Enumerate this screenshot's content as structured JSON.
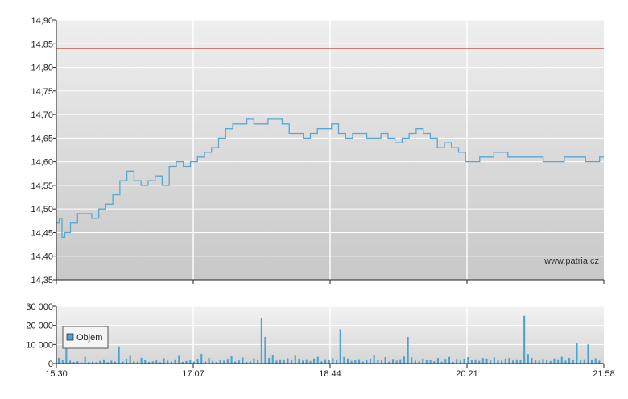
{
  "colors": {
    "price_line": "#5aa7cf",
    "reference_line": "#c0392b",
    "volume_bar": "#4aa3d0",
    "grid": "#ffffff",
    "axis": "#222222",
    "bg_top": "#eeeeee",
    "bg_bottom": "#c8c8c8"
  },
  "watermark": "www.patria.cz",
  "chart_data": [
    {
      "type": "line",
      "name": "price",
      "ylim": [
        14.35,
        14.9
      ],
      "y_ticks": [
        "14,90",
        "14,85",
        "14,80",
        "14,75",
        "14,70",
        "14,65",
        "14,60",
        "14,55",
        "14,50",
        "14,45",
        "14,40",
        "14,35"
      ],
      "y_tick_values": [
        14.9,
        14.85,
        14.8,
        14.75,
        14.7,
        14.65,
        14.6,
        14.55,
        14.5,
        14.45,
        14.4,
        14.35
      ],
      "reference_value": 14.84,
      "x_range": [
        "15:30",
        "21:58"
      ],
      "grid": true,
      "series": [
        {
          "x": [
            "15:30",
            "15:32",
            "15:34",
            "15:36",
            "15:40",
            "15:45",
            "15:50",
            "15:55",
            "16:00",
            "16:05",
            "16:10",
            "16:15",
            "16:20",
            "16:25",
            "16:30",
            "16:35",
            "16:40",
            "16:45",
            "16:50",
            "16:55",
            "17:00",
            "17:05",
            "17:10",
            "17:15",
            "17:20",
            "17:25",
            "17:30",
            "17:35",
            "17:40",
            "17:45",
            "17:50",
            "17:55",
            "18:00",
            "18:05",
            "18:10",
            "18:15",
            "18:20",
            "18:25",
            "18:30",
            "18:35",
            "18:40",
            "18:45",
            "18:50",
            "18:55",
            "19:00",
            "19:05",
            "19:10",
            "19:15",
            "19:20",
            "19:25",
            "19:30",
            "19:35",
            "19:40",
            "19:45",
            "19:50",
            "19:55",
            "20:00",
            "20:05",
            "20:10",
            "20:15",
            "20:20",
            "20:25",
            "20:30",
            "20:35",
            "20:40",
            "20:45",
            "20:50",
            "20:55",
            "21:00",
            "21:05",
            "21:10",
            "21:15",
            "21:20",
            "21:25",
            "21:30",
            "21:35",
            "21:40",
            "21:45",
            "21:50",
            "21:55",
            "21:58"
          ],
          "values": [
            14.47,
            14.48,
            14.44,
            14.45,
            14.47,
            14.49,
            14.49,
            14.48,
            14.5,
            14.51,
            14.53,
            14.56,
            14.58,
            14.56,
            14.55,
            14.56,
            14.57,
            14.55,
            14.59,
            14.6,
            14.59,
            14.6,
            14.61,
            14.62,
            14.63,
            14.65,
            14.67,
            14.68,
            14.68,
            14.69,
            14.68,
            14.68,
            14.69,
            14.69,
            14.68,
            14.66,
            14.66,
            14.65,
            14.66,
            14.67,
            14.67,
            14.68,
            14.66,
            14.65,
            14.66,
            14.66,
            14.65,
            14.65,
            14.66,
            14.65,
            14.64,
            14.65,
            14.66,
            14.67,
            14.66,
            14.65,
            14.63,
            14.64,
            14.63,
            14.62,
            14.6,
            14.6,
            14.61,
            14.61,
            14.62,
            14.62,
            14.61,
            14.61,
            14.61,
            14.61,
            14.61,
            14.6,
            14.6,
            14.6,
            14.61,
            14.61,
            14.61,
            14.6,
            14.6,
            14.61,
            14.61
          ]
        }
      ]
    },
    {
      "type": "bar",
      "name": "volume",
      "ylim": [
        0,
        30000
      ],
      "y_ticks": [
        "30 000",
        "20 000",
        "10 000",
        "0"
      ],
      "y_tick_values": [
        30000,
        20000,
        10000,
        0
      ],
      "x_ticks": [
        "15:30",
        "17:07",
        "18:44",
        "20:21",
        "21:58"
      ],
      "grid": true,
      "legend": {
        "placement": "left",
        "entries": [
          "Objem"
        ]
      },
      "series": [
        {
          "name": "Objem",
          "values": [
            3000,
            2000,
            10000,
            1500,
            800,
            1200,
            600,
            3500,
            900,
            1000,
            700,
            1400,
            2200,
            800,
            1500,
            1000,
            9000,
            1200,
            2500,
            4000,
            1300,
            1100,
            3000,
            2000,
            800,
            1200,
            1600,
            700,
            2800,
            1500,
            1000,
            2200,
            4000,
            900,
            1300,
            1800,
            1000,
            2500,
            5000,
            1200,
            3000,
            1400,
            900,
            2100,
            1500,
            2500,
            3800,
            1000,
            1600,
            3200,
            900,
            1200,
            2700,
            1800,
            24000,
            14000,
            3000,
            4500,
            1500,
            2200,
            1900,
            2800,
            1700,
            4100,
            2500,
            1500,
            2300,
            1300,
            2600,
            3500,
            1200,
            2300,
            1700,
            2900,
            1800,
            18000,
            3500,
            2600,
            1400,
            2000,
            2300,
            1100,
            1800,
            2600,
            4500,
            1800,
            1600,
            3400,
            1000,
            2400,
            1500,
            2300,
            3700,
            14000,
            3200,
            1500,
            1300,
            2600,
            2100,
            1800,
            1200,
            2900,
            1000,
            2400,
            3500,
            900,
            2400,
            1500,
            2600,
            3400,
            1700,
            2200,
            1400,
            2900,
            2600,
            1600,
            3200,
            2000,
            1500,
            2600,
            2900,
            1600,
            2200,
            1800,
            25000,
            5000,
            3000,
            1800,
            1500,
            2400,
            1800,
            1300,
            2600,
            2200,
            3600,
            1500,
            2900,
            1900,
            11000,
            1700,
            2300,
            10000,
            1700,
            2800,
            1500
          ]
        }
      ]
    }
  ]
}
